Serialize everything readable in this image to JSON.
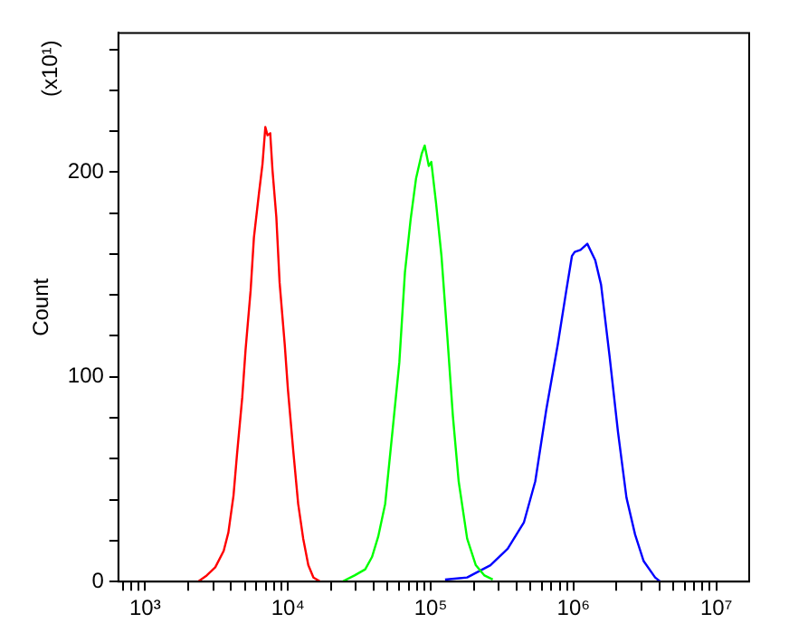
{
  "chart_data": {
    "type": "line",
    "ylabel": "Count",
    "annotations": [
      "(x10¹)"
    ],
    "log": "x",
    "grid": false,
    "legend": false,
    "marker": "none",
    "line_style": "solid",
    "xlim": [
      650,
      17000000
    ],
    "ylim": [
      0,
      268
    ],
    "xticks": [
      {
        "value": 1000,
        "label": "10³"
      },
      {
        "value": 700,
        "label": null
      },
      {
        "value": 800,
        "label": null
      },
      {
        "value": 900,
        "label": null
      },
      {
        "value": 2000,
        "label": null
      },
      {
        "value": 3000,
        "label": null
      },
      {
        "value": 4000,
        "label": null
      },
      {
        "value": 5000,
        "label": null
      },
      {
        "value": 6000,
        "label": null
      },
      {
        "value": 7000,
        "label": null
      },
      {
        "value": 8000,
        "label": null
      },
      {
        "value": 9000,
        "label": null
      },
      {
        "value": 10000,
        "label": "10⁴"
      },
      {
        "value": 20000,
        "label": null
      },
      {
        "value": 30000,
        "label": null
      },
      {
        "value": 40000,
        "label": null
      },
      {
        "value": 50000,
        "label": null
      },
      {
        "value": 60000,
        "label": null
      },
      {
        "value": 70000,
        "label": null
      },
      {
        "value": 80000,
        "label": null
      },
      {
        "value": 90000,
        "label": null
      },
      {
        "value": 100000,
        "label": "10⁵"
      },
      {
        "value": 200000,
        "label": null
      },
      {
        "value": 300000,
        "label": null
      },
      {
        "value": 400000,
        "label": null
      },
      {
        "value": 500000,
        "label": null
      },
      {
        "value": 600000,
        "label": null
      },
      {
        "value": 700000,
        "label": null
      },
      {
        "value": 800000,
        "label": null
      },
      {
        "value": 900000,
        "label": null
      },
      {
        "value": 1000000,
        "label": "10⁶"
      },
      {
        "value": 2000000,
        "label": null
      },
      {
        "value": 3000000,
        "label": null
      },
      {
        "value": 4000000,
        "label": null
      },
      {
        "value": 5000000,
        "label": null
      },
      {
        "value": 6000000,
        "label": null
      },
      {
        "value": 7000000,
        "label": null
      },
      {
        "value": 8000000,
        "label": null
      },
      {
        "value": 9000000,
        "label": null
      },
      {
        "value": 10000000,
        "label": "10⁷"
      }
    ],
    "yticks": [
      0,
      {
        "value": 20,
        "label": null
      },
      {
        "value": 40,
        "label": null
      },
      {
        "value": 60,
        "label": null
      },
      {
        "value": 80,
        "label": null
      },
      100,
      {
        "value": 120,
        "label": null
      },
      {
        "value": 140,
        "label": null
      },
      {
        "value": 160,
        "label": null
      },
      {
        "value": 180,
        "label": null
      },
      200,
      {
        "value": 220,
        "label": null
      },
      {
        "value": 240,
        "label": null
      },
      {
        "value": 260,
        "label": null
      }
    ],
    "series": [
      {
        "color": "#ff0000",
        "x": [
          2350,
          2700,
          3100,
          3550,
          3830,
          4160,
          4400,
          4790,
          5050,
          5480,
          5780,
          6280,
          6640,
          6950,
          7200,
          7520,
          7800,
          8300,
          8750,
          9500,
          10000,
          10900,
          11800,
          12800,
          13900,
          15100,
          16900
        ],
        "values": [
          0,
          3,
          7,
          15,
          24,
          42,
          62,
          90,
          113,
          142,
          168,
          190,
          204,
          222,
          218,
          219,
          201,
          178,
          146,
          116,
          94,
          64,
          38,
          21,
          8,
          2,
          0
        ]
      },
      {
        "color": "#00ff00",
        "x": [
          24000,
          29300,
          34800,
          38800,
          42900,
          48000,
          55000,
          60300,
          66000,
          72400,
          79000,
          86500,
          90800,
          97000,
          101000,
          109000,
          119000,
          131000,
          143000,
          157000,
          180000,
          207000,
          238000,
          272000
        ],
        "values": [
          0,
          3,
          6,
          12,
          22,
          38,
          79,
          107,
          151,
          177,
          197,
          209,
          213,
          203,
          205,
          185,
          159,
          119,
          81,
          49,
          21,
          8,
          3,
          1
        ]
      },
      {
        "color": "#0000ff",
        "x": [
          126000,
          180000,
          262000,
          346000,
          450000,
          540000,
          645000,
          777000,
          890000,
          975000,
          1020000,
          1120000,
          1250000,
          1420000,
          1560000,
          1790000,
          2050000,
          2350000,
          2700000,
          3100000,
          3730000,
          4050000
        ],
        "values": [
          1,
          2,
          8,
          16,
          29,
          49,
          84,
          116,
          142,
          159,
          161,
          162,
          165,
          157,
          145,
          110,
          73,
          41,
          23,
          10,
          2,
          0
        ]
      }
    ]
  }
}
